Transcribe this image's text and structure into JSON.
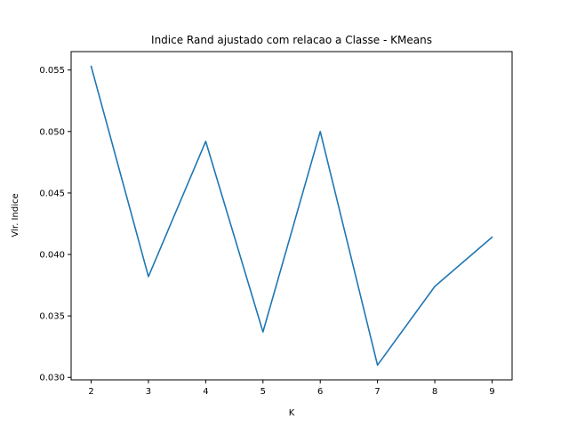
{
  "chart_data": {
    "type": "line",
    "title": "Indice Rand ajustado com relacao a Classe - KMeans",
    "xlabel": "K",
    "ylabel": "Vlr. Indice",
    "x": [
      2,
      3,
      4,
      5,
      6,
      7,
      8,
      9
    ],
    "series": [
      {
        "values": [
          0.0553,
          0.0382,
          0.0492,
          0.0337,
          0.05,
          0.031,
          0.0374,
          0.0414
        ],
        "color": "#1f77b4"
      }
    ],
    "xlim": [
      1.65,
      9.35
    ],
    "ylim": [
      0.0298,
      0.0565
    ],
    "xticks": [
      "2",
      "3",
      "4",
      "5",
      "6",
      "7",
      "8",
      "9"
    ],
    "yticks": [
      "0.030",
      "0.035",
      "0.040",
      "0.045",
      "0.050",
      "0.055"
    ],
    "grid": false,
    "legend": "none"
  }
}
